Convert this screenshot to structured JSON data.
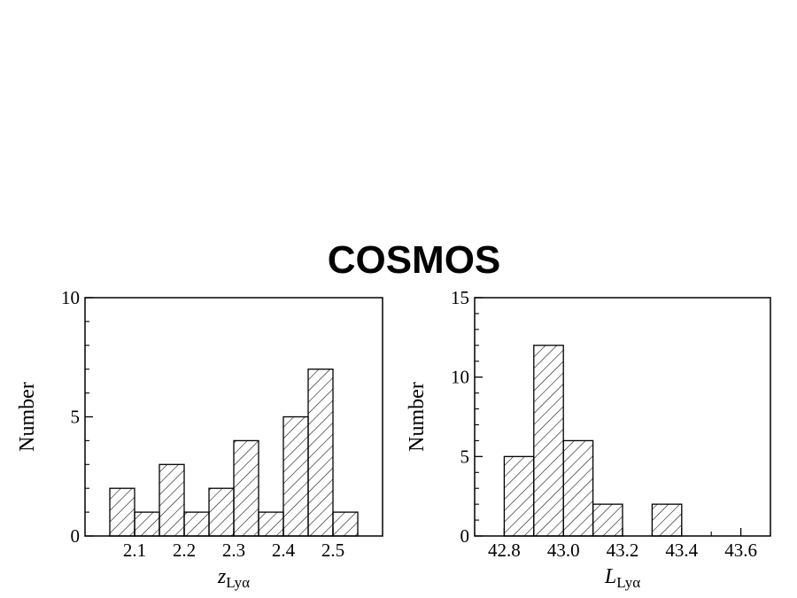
{
  "title": "COSMOS",
  "chart_data": [
    {
      "type": "bar",
      "histogram": true,
      "bin_edges": [
        2.05,
        2.1,
        2.15,
        2.2,
        2.25,
        2.3,
        2.35,
        2.4,
        2.45,
        2.5,
        2.55
      ],
      "values": [
        2,
        1,
        3,
        1,
        2,
        4,
        1,
        5,
        7,
        1
      ],
      "xlabel_main": "z",
      "xlabel_sub": "Lyα",
      "ylabel": "Number",
      "xlim": [
        2.0,
        2.6
      ],
      "ylim": [
        0,
        10
      ],
      "x_ticks": [
        "2.1",
        "2.2",
        "2.3",
        "2.4",
        "2.5"
      ],
      "y_ticks": [
        "0",
        "5",
        "10"
      ],
      "fill": "diagonal hatch",
      "grid": false
    },
    {
      "type": "bar",
      "histogram": true,
      "bin_edges": [
        42.8,
        42.9,
        43.0,
        43.1,
        43.2,
        43.3,
        43.4
      ],
      "values": [
        5,
        12,
        6,
        2,
        0,
        2
      ],
      "xlabel_main": "L",
      "xlabel_sub": "Lyα",
      "ylabel": "Number",
      "xlim": [
        42.7,
        43.7
      ],
      "ylim": [
        0,
        15
      ],
      "x_ticks": [
        "42.8",
        "43.0",
        "43.2",
        "43.4",
        "43.6"
      ],
      "y_ticks": [
        "0",
        "5",
        "10",
        "15"
      ],
      "fill": "diagonal hatch",
      "grid": false
    }
  ]
}
